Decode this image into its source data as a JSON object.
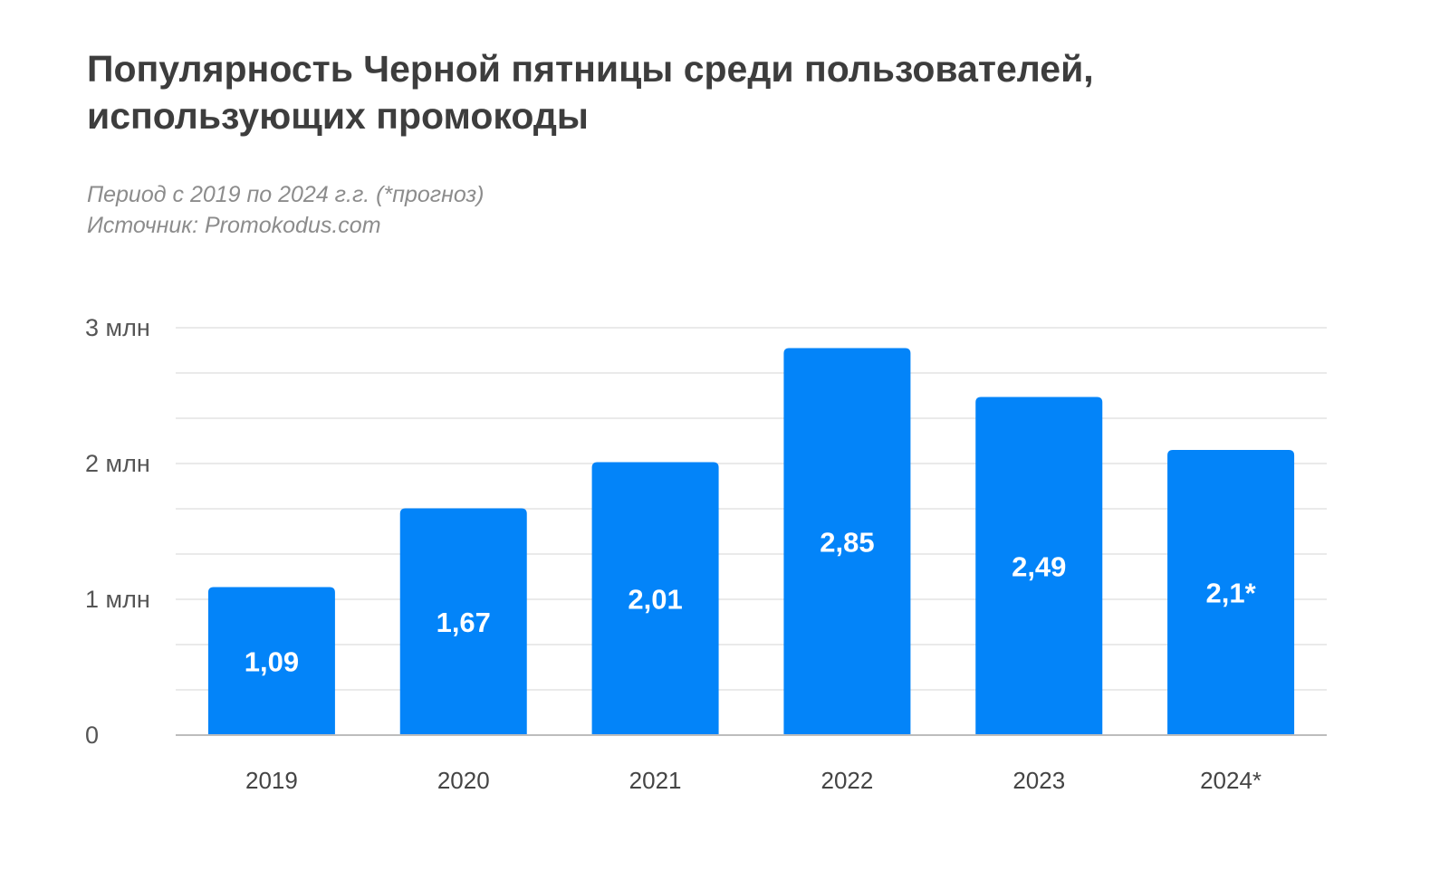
{
  "title": {
    "line1": "Популярность Черной пятницы среди пользователей,",
    "line2": "использующих промокоды"
  },
  "subtitle": {
    "period": "Период с 2019 по 2024 г.г. (*прогноз)",
    "source": "Источник: Promokodus.com"
  },
  "colors": {
    "bar": "#0384f9",
    "grid": "#e3e3e3",
    "axis": "#bdbdbd",
    "value_text": "#ffffff"
  },
  "chart_data": {
    "type": "bar",
    "title": "Популярность Черной пятницы среди пользователей, использующих промокоды",
    "xlabel": "",
    "ylabel": "",
    "categories": [
      "2019",
      "2020",
      "2021",
      "2022",
      "2023",
      "2024*"
    ],
    "values": [
      1.09,
      1.67,
      2.01,
      2.85,
      2.49,
      2.1
    ],
    "value_labels": [
      "1,09",
      "1,67",
      "2,01",
      "2,85",
      "2,49",
      "2,1*"
    ],
    "ylim": [
      0,
      3
    ],
    "yticks": [
      {
        "value": 0,
        "label": "0"
      },
      {
        "value": 1,
        "label": "1 млн"
      },
      {
        "value": 2,
        "label": "2 млн"
      },
      {
        "value": 3,
        "label": "3 млн"
      }
    ],
    "minor_grid_step": 0.333,
    "grid": true,
    "legend": "none"
  }
}
